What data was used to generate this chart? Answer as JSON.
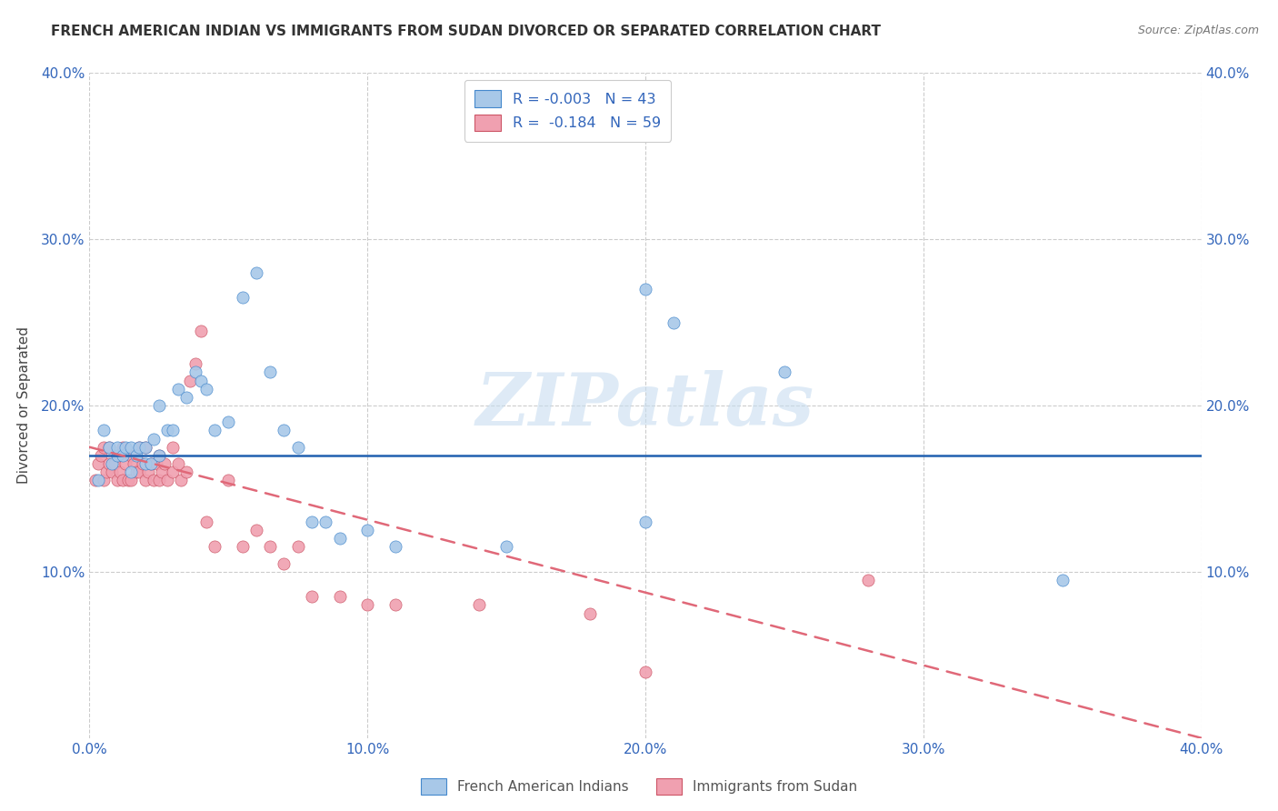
{
  "title": "FRENCH AMERICAN INDIAN VS IMMIGRANTS FROM SUDAN DIVORCED OR SEPARATED CORRELATION CHART",
  "source": "Source: ZipAtlas.com",
  "ylabel": "Divorced or Separated",
  "xlim": [
    0.0,
    0.4
  ],
  "ylim": [
    0.0,
    0.4
  ],
  "xtick_labels": [
    "0.0%",
    "",
    "",
    "",
    "",
    "10.0%",
    "",
    "",
    "",
    "",
    "20.0%",
    "",
    "",
    "",
    "",
    "30.0%",
    "",
    "",
    "",
    "",
    "40.0%"
  ],
  "xtick_vals": [
    0.0,
    0.02,
    0.04,
    0.06,
    0.08,
    0.1,
    0.12,
    0.14,
    0.16,
    0.18,
    0.2,
    0.22,
    0.24,
    0.26,
    0.28,
    0.3,
    0.32,
    0.34,
    0.36,
    0.38,
    0.4
  ],
  "xtick_major_labels": [
    "0.0%",
    "10.0%",
    "20.0%",
    "30.0%",
    "40.0%"
  ],
  "xtick_major_vals": [
    0.0,
    0.1,
    0.2,
    0.3,
    0.4
  ],
  "ytick_labels": [
    "10.0%",
    "20.0%",
    "30.0%",
    "40.0%"
  ],
  "ytick_vals": [
    0.1,
    0.2,
    0.3,
    0.4
  ],
  "legend_entry1": "R = -0.003   N = 43",
  "legend_entry2": "R =  -0.184   N = 59",
  "legend_label1": "French American Indians",
  "legend_label2": "Immigrants from Sudan",
  "color_blue": "#a8c8e8",
  "color_pink": "#f0a0b0",
  "trendline_blue_color": "#2060b0",
  "trendline_pink_color": "#e06878",
  "watermark": "ZIPatlas",
  "blue_R": -0.003,
  "pink_R": -0.184,
  "blue_trendline_y0": 0.17,
  "blue_trendline_y1": 0.17,
  "pink_trendline_x0": 0.0,
  "pink_trendline_y0": 0.175,
  "pink_trendline_x1": 0.4,
  "pink_trendline_y1": 0.0,
  "blue_scatter_x": [
    0.003,
    0.005,
    0.007,
    0.008,
    0.01,
    0.01,
    0.012,
    0.013,
    0.015,
    0.015,
    0.017,
    0.018,
    0.02,
    0.02,
    0.022,
    0.023,
    0.025,
    0.025,
    0.028,
    0.03,
    0.032,
    0.035,
    0.038,
    0.04,
    0.042,
    0.045,
    0.05,
    0.055,
    0.06,
    0.065,
    0.07,
    0.075,
    0.08,
    0.085,
    0.09,
    0.1,
    0.11,
    0.15,
    0.2,
    0.2,
    0.21,
    0.25,
    0.35
  ],
  "blue_scatter_y": [
    0.155,
    0.185,
    0.175,
    0.165,
    0.17,
    0.175,
    0.17,
    0.175,
    0.16,
    0.175,
    0.17,
    0.175,
    0.165,
    0.175,
    0.165,
    0.18,
    0.17,
    0.2,
    0.185,
    0.185,
    0.21,
    0.205,
    0.22,
    0.215,
    0.21,
    0.185,
    0.19,
    0.265,
    0.28,
    0.22,
    0.185,
    0.175,
    0.13,
    0.13,
    0.12,
    0.125,
    0.115,
    0.115,
    0.27,
    0.13,
    0.25,
    0.22,
    0.095
  ],
  "pink_scatter_x": [
    0.002,
    0.003,
    0.004,
    0.005,
    0.005,
    0.006,
    0.007,
    0.007,
    0.008,
    0.009,
    0.01,
    0.01,
    0.011,
    0.012,
    0.012,
    0.013,
    0.014,
    0.015,
    0.015,
    0.016,
    0.017,
    0.018,
    0.018,
    0.019,
    0.02,
    0.02,
    0.021,
    0.022,
    0.023,
    0.024,
    0.025,
    0.025,
    0.026,
    0.027,
    0.028,
    0.03,
    0.03,
    0.032,
    0.033,
    0.035,
    0.036,
    0.038,
    0.04,
    0.042,
    0.045,
    0.05,
    0.055,
    0.06,
    0.065,
    0.07,
    0.075,
    0.08,
    0.09,
    0.1,
    0.11,
    0.14,
    0.18,
    0.2,
    0.28
  ],
  "pink_scatter_y": [
    0.155,
    0.165,
    0.17,
    0.155,
    0.175,
    0.16,
    0.165,
    0.175,
    0.16,
    0.165,
    0.155,
    0.17,
    0.16,
    0.155,
    0.175,
    0.165,
    0.155,
    0.155,
    0.17,
    0.165,
    0.16,
    0.16,
    0.175,
    0.165,
    0.155,
    0.175,
    0.16,
    0.165,
    0.155,
    0.165,
    0.155,
    0.17,
    0.16,
    0.165,
    0.155,
    0.16,
    0.175,
    0.165,
    0.155,
    0.16,
    0.215,
    0.225,
    0.245,
    0.13,
    0.115,
    0.155,
    0.115,
    0.125,
    0.115,
    0.105,
    0.115,
    0.085,
    0.085,
    0.08,
    0.08,
    0.08,
    0.075,
    0.04,
    0.095
  ]
}
